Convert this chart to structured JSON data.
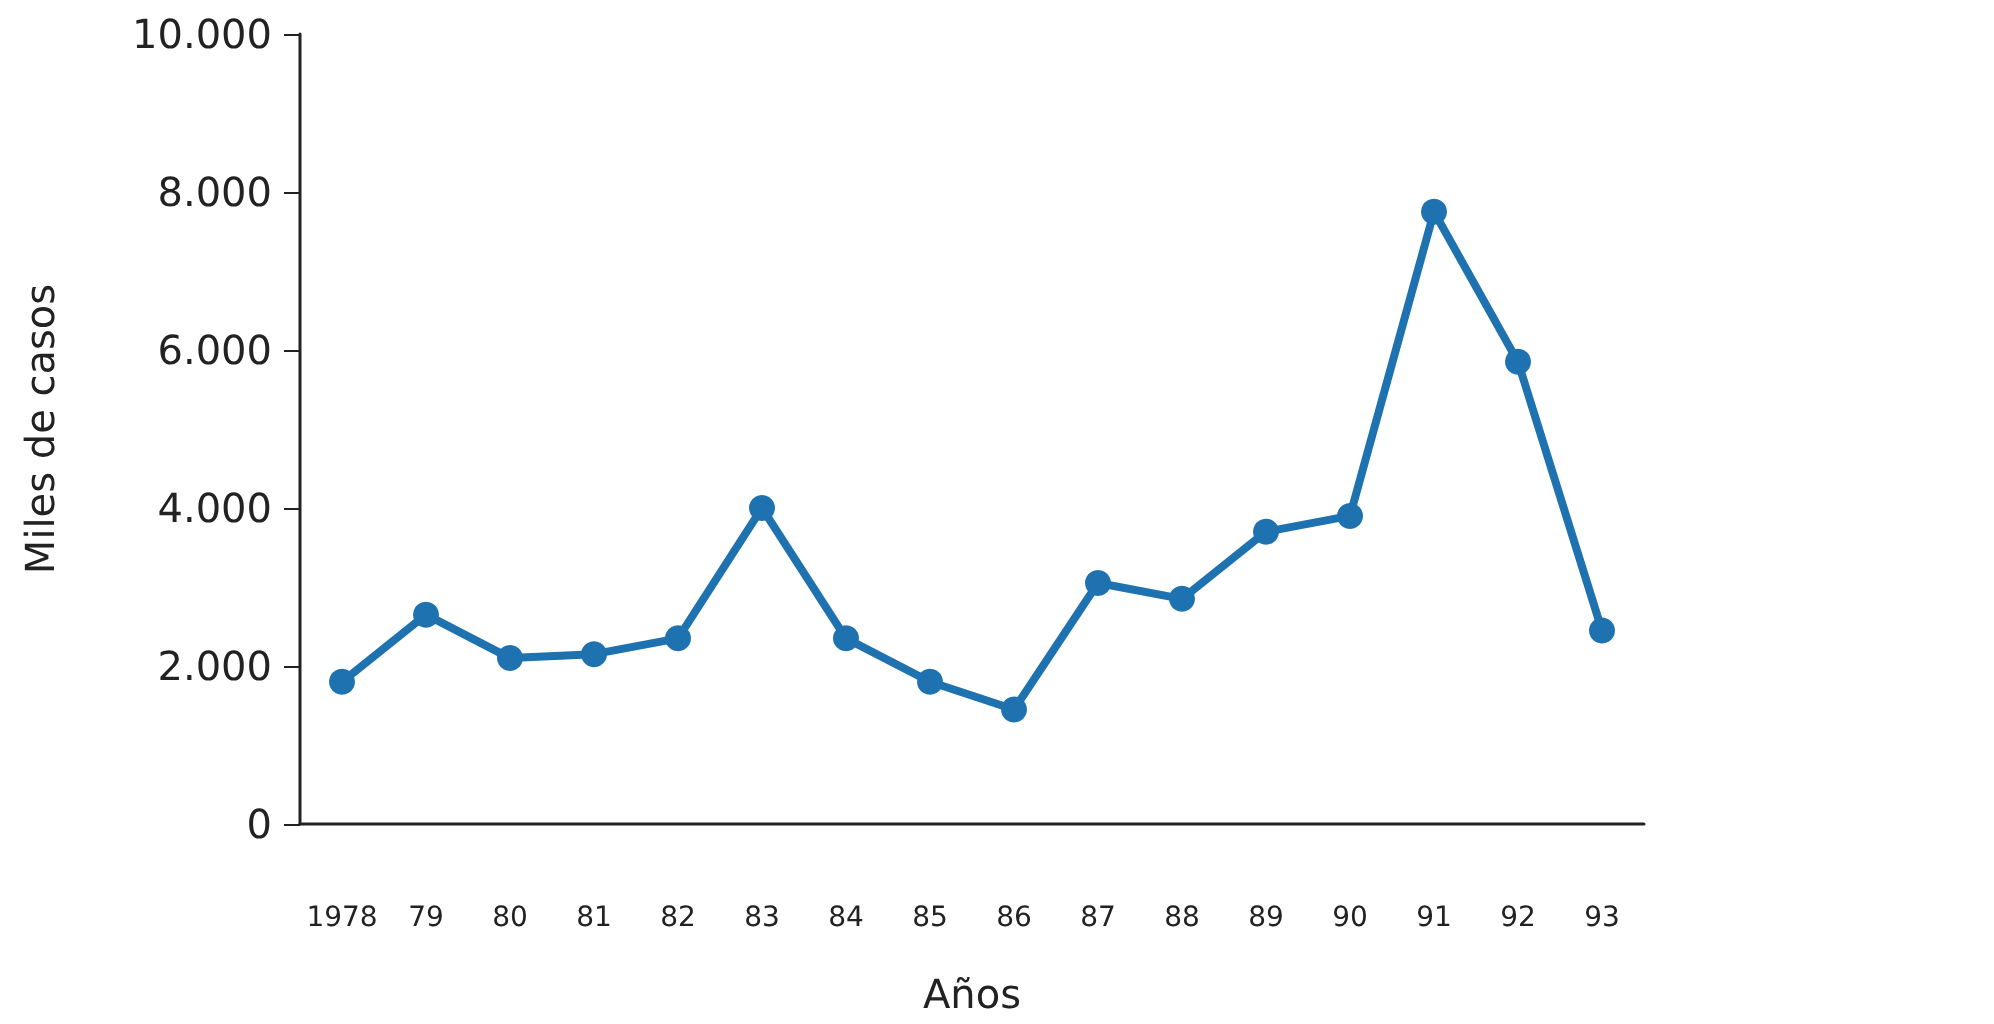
{
  "chart_data": {
    "type": "line",
    "xlabel": "Años",
    "ylabel": "Miles de casos",
    "categories": [
      "1978",
      "79",
      "80",
      "81",
      "82",
      "83",
      "84",
      "85",
      "86",
      "87",
      "88",
      "89",
      "90",
      "91",
      "92",
      "93"
    ],
    "series": [
      {
        "color": "#1f72b0",
        "values": [
          1800,
          2650,
          2100,
          2150,
          2350,
          4000,
          2350,
          1800,
          1450,
          3050,
          2850,
          3700,
          3900,
          7750,
          5850,
          2450
        ]
      }
    ],
    "ylim": [
      0,
      10000
    ],
    "yticks": [
      {
        "value": 0,
        "label": "0"
      },
      {
        "value": 2000,
        "label": "2.000"
      },
      {
        "value": 4000,
        "label": "4.000"
      },
      {
        "value": 6000,
        "label": "6.000"
      },
      {
        "value": 8000,
        "label": "8.000"
      },
      {
        "value": 10000,
        "label": "10.000"
      }
    ],
    "grid": false,
    "legend": false,
    "marker": "circle",
    "line_style": "solid"
  }
}
